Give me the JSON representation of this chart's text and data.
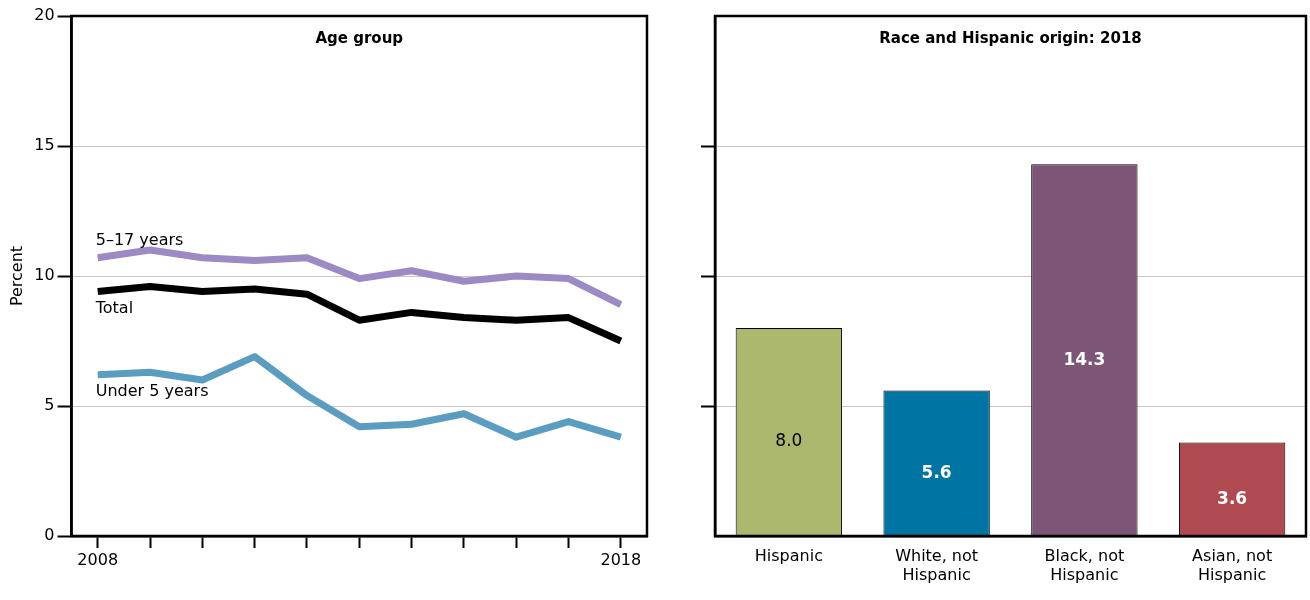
{
  "chart_data": [
    {
      "type": "line",
      "title": "Age group",
      "ylabel": "Percent",
      "x": [
        2008,
        2009,
        2010,
        2011,
        2012,
        2013,
        2014,
        2015,
        2016,
        2017,
        2018
      ],
      "series": [
        {
          "name": "5–17 years",
          "color": "#9b8ac4",
          "values": [
            10.7,
            11.0,
            10.7,
            10.6,
            10.7,
            9.9,
            10.2,
            9.8,
            10.0,
            9.9,
            8.9
          ]
        },
        {
          "name": "Total",
          "color": "#000000",
          "values": [
            9.4,
            9.6,
            9.4,
            9.5,
            9.3,
            8.3,
            8.6,
            8.4,
            8.3,
            8.4,
            7.5
          ]
        },
        {
          "name": "Under 5 years",
          "color": "#5b9dc0",
          "values": [
            6.2,
            6.3,
            6.0,
            6.9,
            5.4,
            4.2,
            4.3,
            4.7,
            3.8,
            4.4,
            3.8
          ]
        }
      ],
      "xlim": [
        2007.5,
        2018.5
      ],
      "xticks": [
        2008,
        {
          "value": 2009,
          "label": null
        },
        {
          "value": 2010,
          "label": null
        },
        {
          "value": 2011,
          "label": null
        },
        {
          "value": 2012,
          "label": null
        },
        {
          "value": 2013,
          "label": null
        },
        {
          "value": 2014,
          "label": null
        },
        {
          "value": 2015,
          "label": null
        },
        {
          "value": 2016,
          "label": null
        },
        {
          "value": 2017,
          "label": null
        },
        2018
      ],
      "ylim": [
        0,
        20
      ],
      "yticks": [
        0,
        5,
        10,
        15,
        20
      ],
      "grid": "y",
      "legend": false,
      "marker": "none",
      "line_style": "solid"
    },
    {
      "type": "bar",
      "title": "Race and Hispanic origin: 2018",
      "categories": [
        "Hispanic",
        "White, not Hispanic",
        "Black, not Hispanic",
        "Asian, not Hispanic"
      ],
      "values": [
        8.0,
        5.6,
        14.3,
        3.6
      ],
      "colors": [
        "#abb86e",
        "#0074a2",
        "#7d5577",
        "#ae4a50"
      ],
      "ylim": [
        0,
        20
      ],
      "yticks": [
        {
          "value": 5,
          "label": null
        },
        {
          "value": 10,
          "label": null
        },
        {
          "value": 15,
          "label": null
        }
      ],
      "value_labels": [
        "8.0",
        "5.6",
        "14.3",
        "3.6"
      ],
      "grid": "y",
      "legend": false,
      "tick_labels": "x"
    }
  ]
}
